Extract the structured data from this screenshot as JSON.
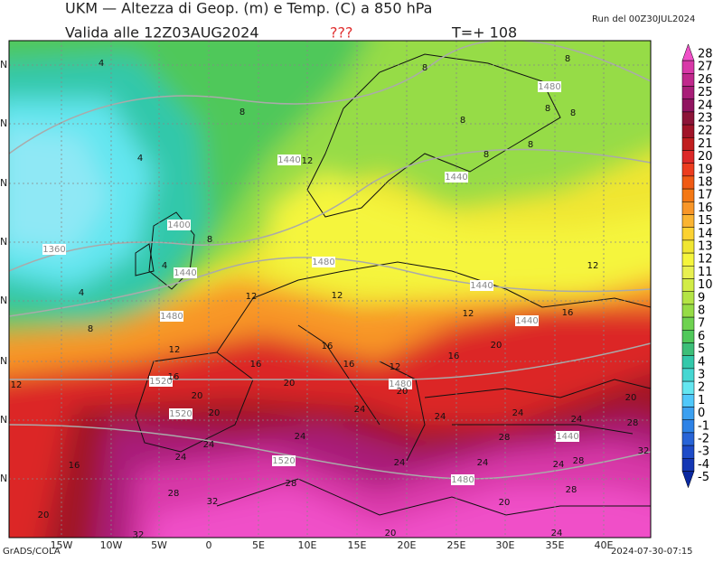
{
  "header": {
    "title": "UKM — Altezza di Geop. (m) e Temp. (C) a 850 hPa",
    "valid": "Valida alle 12Z03AUG2024",
    "flag": "???",
    "step": "T=+ 108",
    "run": "Run del 00Z30JUL2024"
  },
  "footer": {
    "credit": "GrADS/COLA",
    "timestamp": "2024-07-30-07:15"
  },
  "map": {
    "lon_labels": [
      "15W",
      "10W",
      "5W",
      "0",
      "5E",
      "10E",
      "15E",
      "20E",
      "25E",
      "30E",
      "35E",
      "40E"
    ],
    "lat_labels": [
      "N",
      "N",
      "N",
      "N",
      "N",
      "N",
      "N",
      "N"
    ],
    "contour_labels": [
      4,
      8,
      8,
      1480,
      8,
      8,
      8,
      8,
      4,
      1440,
      12,
      8,
      8,
      1440,
      1400,
      8,
      1360,
      4,
      1440,
      1480,
      12,
      4,
      12,
      12,
      1440,
      1480,
      12,
      1440,
      16,
      8,
      12,
      16,
      20,
      16,
      16,
      12,
      16,
      12,
      1520,
      16,
      1480,
      20,
      20,
      20,
      20,
      20,
      1520,
      24,
      24,
      24,
      24,
      28,
      1440,
      28,
      24,
      24,
      32,
      24,
      24,
      24,
      28,
      24,
      1520,
      16,
      28,
      1480,
      28,
      28,
      32,
      20,
      20,
      32,
      20,
      24
    ]
  },
  "colorbar": {
    "values": [
      28,
      27,
      26,
      25,
      24,
      23,
      22,
      21,
      20,
      19,
      18,
      17,
      16,
      15,
      14,
      13,
      12,
      11,
      10,
      9,
      8,
      7,
      6,
      5,
      4,
      3,
      2,
      1,
      0,
      -1,
      -2,
      -3,
      -4,
      -5
    ],
    "colors": [
      "#f050c8",
      "#d838a8",
      "#c0288c",
      "#a81e78",
      "#901460",
      "#8c1438",
      "#a01428",
      "#c01e1e",
      "#dc2828",
      "#ec3c1e",
      "#f05a14",
      "#f47814",
      "#f89628",
      "#fab432",
      "#fcd232",
      "#f0e632",
      "#f5f53c",
      "#e8f050",
      "#d2ec46",
      "#b4e446",
      "#96dc46",
      "#6ed250",
      "#50c85a",
      "#3cbe78",
      "#32c8aa",
      "#46d7d2",
      "#64e6f0",
      "#50c8fa",
      "#3ca0f0",
      "#2d82e6",
      "#2864d7",
      "#1e4bc8",
      "#1437b4",
      "#0a28a0"
    ]
  }
}
